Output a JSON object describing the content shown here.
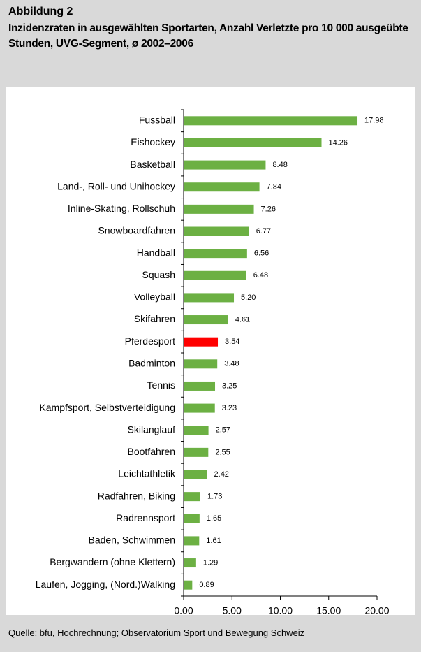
{
  "chart_data": {
    "type": "barh",
    "title": "Abbildung 2",
    "subtitle": "Inzidenzraten in ausgewählten Sportarten, Anzahl Verletzte pro 10 000 ausgeübte Stunden, UVG-Segment, ø 2002–2006",
    "source": "Quelle: bfu, Hochrechnung; Observatorium Sport und Bewegung Schweiz",
    "categories": [
      "Fussball",
      "Eishockey",
      "Basketball",
      "Land-, Roll- und Unihockey",
      "Inline-Skating, Rollschuh",
      "Snowboardfahren",
      "Handball",
      "Squash",
      "Volleyball",
      "Skifahren",
      "Pferdesport",
      "Badminton",
      "Tennis",
      "Kampfsport, Selbstverteidigung",
      "Skilanglauf",
      "Bootfahren",
      "Leichtathletik",
      "Radfahren, Biking",
      "Radrennsport",
      "Baden, Schwimmen",
      "Bergwandern (ohne Klettern)",
      "Laufen, Jogging, (Nord.)Walking"
    ],
    "values": [
      17.98,
      14.26,
      8.48,
      7.84,
      7.26,
      6.77,
      6.56,
      6.48,
      5.2,
      4.61,
      3.54,
      3.48,
      3.25,
      3.23,
      2.57,
      2.55,
      2.42,
      1.73,
      1.65,
      1.61,
      1.29,
      0.89
    ],
    "value_labels": [
      "17.98",
      "14.26",
      "8.48",
      "7.84",
      "7.26",
      "6.77",
      "6.56",
      "6.48",
      "5.20",
      "4.61",
      "3.54",
      "3.48",
      "3.25",
      "3.23",
      "2.57",
      "2.55",
      "2.42",
      "1.73",
      "1.65",
      "1.61",
      "1.29",
      "0.89"
    ],
    "colors": [
      "#6cb043",
      "#6cb043",
      "#6cb043",
      "#6cb043",
      "#6cb043",
      "#6cb043",
      "#6cb043",
      "#6cb043",
      "#6cb043",
      "#6cb043",
      "#ff0000",
      "#6cb043",
      "#6cb043",
      "#6cb043",
      "#6cb043",
      "#6cb043",
      "#6cb043",
      "#6cb043",
      "#6cb043",
      "#6cb043",
      "#6cb043",
      "#6cb043"
    ],
    "xlim": [
      0,
      20
    ],
    "xticks": [
      {
        "value": 0,
        "label": "0.00"
      },
      {
        "value": 5,
        "label": "5.00"
      },
      {
        "value": 10,
        "label": "10.00"
      },
      {
        "value": 15,
        "label": "15.00"
      },
      {
        "value": 20,
        "label": "20.00"
      }
    ]
  }
}
